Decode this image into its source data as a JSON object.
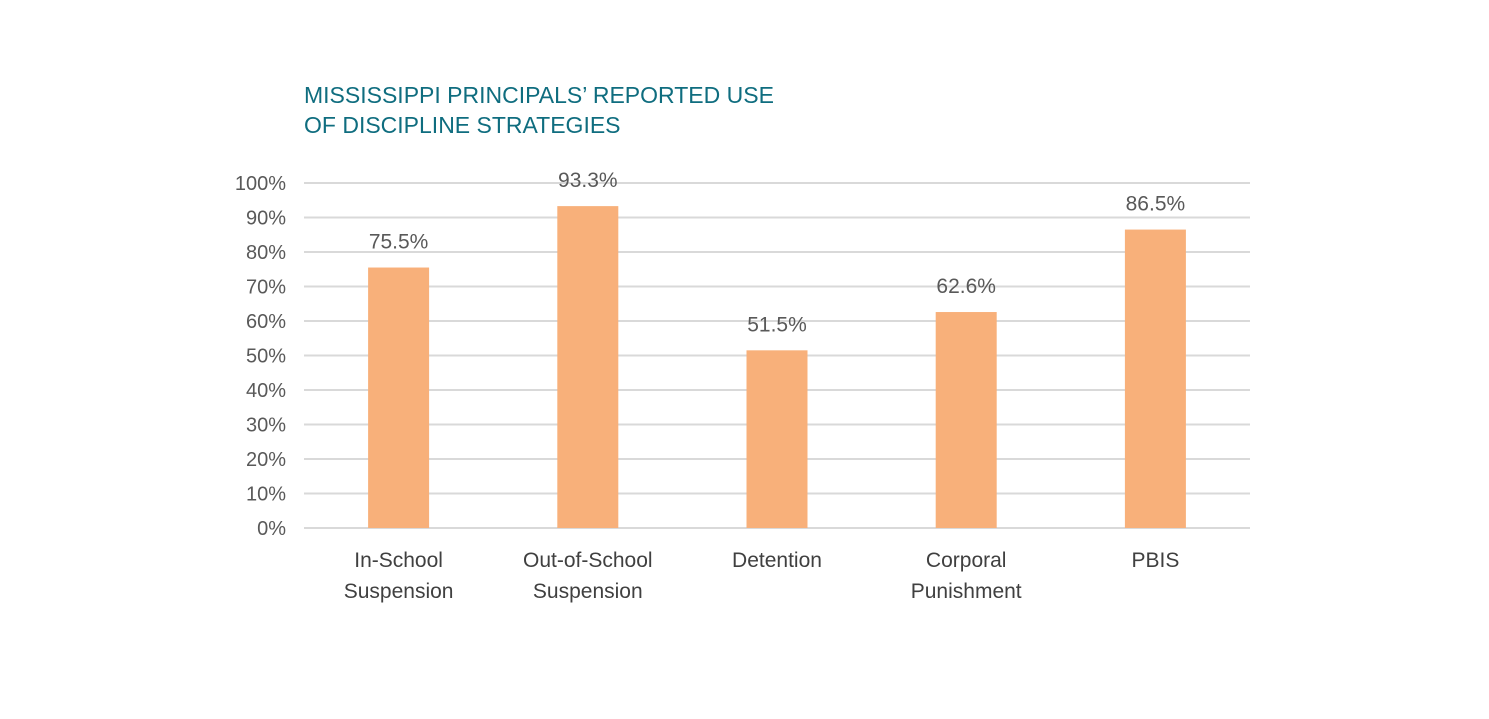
{
  "chart_data": {
    "type": "bar",
    "title_lines": [
      "MISSISSIPPI PRINCIPALS’ REPORTED USE",
      "OF DISCIPLINE STRATEGIES"
    ],
    "categories": [
      [
        "In-School",
        "Suspension"
      ],
      [
        "Out-of-School",
        "Suspension"
      ],
      [
        "Detention"
      ],
      [
        "Corporal",
        "Punishment"
      ],
      [
        "PBIS"
      ]
    ],
    "values": [
      75.5,
      93.3,
      51.5,
      62.6,
      86.5
    ],
    "data_labels": [
      "75.5%",
      "93.3%",
      "51.5%",
      "62.6%",
      "86.5%"
    ],
    "y_ticks": [
      0,
      10,
      20,
      30,
      40,
      50,
      60,
      70,
      80,
      90,
      100
    ],
    "y_tick_labels": [
      "0%",
      "10%",
      "20%",
      "30%",
      "40%",
      "50%",
      "60%",
      "70%",
      "80%",
      "90%",
      "100%"
    ],
    "ylim": [
      0,
      100
    ],
    "grid": true,
    "colors": {
      "bar": "#f8b07a",
      "grid": "#d9d9d9",
      "title": "#0f6d7f"
    }
  }
}
